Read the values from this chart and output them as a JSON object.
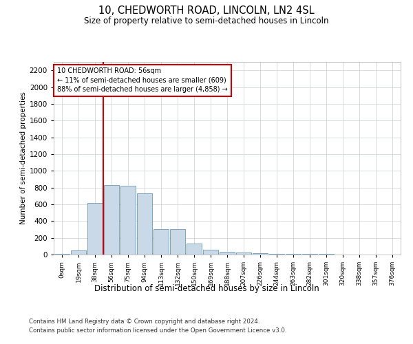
{
  "title": "10, CHEDWORTH ROAD, LINCOLN, LN2 4SL",
  "subtitle": "Size of property relative to semi-detached houses in Lincoln",
  "xlabel": "Distribution of semi-detached houses by size in Lincoln",
  "ylabel": "Number of semi-detached properties",
  "bar_labels": [
    "0sqm",
    "19sqm",
    "38sqm",
    "56sqm",
    "75sqm",
    "94sqm",
    "113sqm",
    "132sqm",
    "150sqm",
    "169sqm",
    "188sqm",
    "207sqm",
    "226sqm",
    "244sqm",
    "263sqm",
    "282sqm",
    "301sqm",
    "320sqm",
    "338sqm",
    "357sqm",
    "376sqm"
  ],
  "bar_values": [
    5,
    50,
    620,
    830,
    820,
    730,
    305,
    305,
    135,
    60,
    35,
    25,
    20,
    5,
    5,
    5,
    5,
    0,
    0,
    0,
    0
  ],
  "bar_color": "#c9d9e8",
  "bar_edge_color": "#7098b8",
  "highlight_line_index": 3,
  "annotation_text": "10 CHEDWORTH ROAD: 56sqm\n← 11% of semi-detached houses are smaller (609)\n88% of semi-detached houses are larger (4,858) →",
  "annotation_box_color": "#ffffff",
  "annotation_box_edge_color": "#cc0000",
  "ylim": [
    0,
    2300
  ],
  "yticks": [
    0,
    200,
    400,
    600,
    800,
    1000,
    1200,
    1400,
    1600,
    1800,
    2000,
    2200
  ],
  "property_line_color": "#cc0000",
  "footer_line1": "Contains HM Land Registry data © Crown copyright and database right 2024.",
  "footer_line2": "Contains public sector information licensed under the Open Government Licence v3.0.",
  "background_color": "#ffffff",
  "grid_color": "#c5cfd8"
}
